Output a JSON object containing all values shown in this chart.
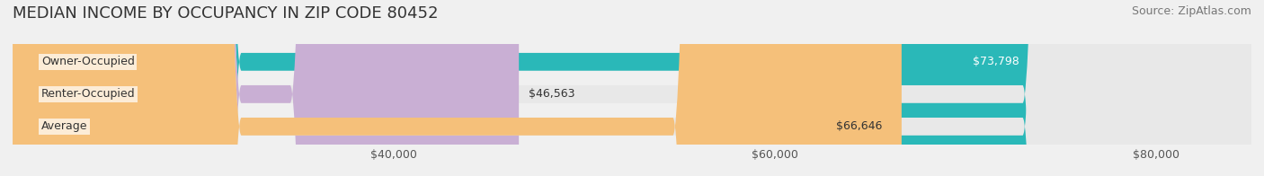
{
  "title": "MEDIAN INCOME BY OCCUPANCY IN ZIP CODE 80452",
  "source": "Source: ZipAtlas.com",
  "categories": [
    "Owner-Occupied",
    "Renter-Occupied",
    "Average"
  ],
  "values": [
    73798,
    46563,
    66646
  ],
  "bar_colors": [
    "#2ab8b8",
    "#c9afd4",
    "#f5c07a"
  ],
  "bar_edge_colors": [
    "#2ab8b8",
    "#c9afd4",
    "#f5c07a"
  ],
  "value_labels": [
    "$73,798",
    "$46,563",
    "$66,646"
  ],
  "xlim": [
    20000,
    85000
  ],
  "xticks": [
    40000,
    60000,
    80000
  ],
  "xtick_labels": [
    "$40,000",
    "$60,000",
    "$80,000"
  ],
  "background_color": "#f0f0f0",
  "bar_bg_color": "#e8e8e8",
  "title_fontsize": 13,
  "source_fontsize": 9,
  "label_fontsize": 9,
  "tick_fontsize": 9
}
